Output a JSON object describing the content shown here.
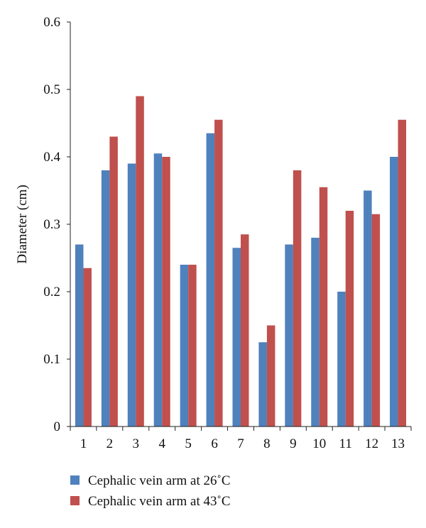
{
  "chart_data": {
    "type": "bar",
    "categories": [
      "1",
      "2",
      "3",
      "4",
      "5",
      "6",
      "7",
      "8",
      "9",
      "10",
      "11",
      "12",
      "13"
    ],
    "series": [
      {
        "name": "Cephalic vein arm at 26˚C",
        "color": "#4f81bd",
        "values": [
          0.27,
          0.38,
          0.39,
          0.405,
          0.24,
          0.435,
          0.265,
          0.125,
          0.27,
          0.28,
          0.2,
          0.35,
          0.4
        ]
      },
      {
        "name": "Cephalic vein arm at 43˚C",
        "color": "#c0504d",
        "values": [
          0.235,
          0.43,
          0.49,
          0.4,
          0.24,
          0.455,
          0.285,
          0.15,
          0.38,
          0.355,
          0.32,
          0.315,
          0.455
        ]
      }
    ],
    "yticks": [
      "0",
      "0.1",
      "0.2",
      "0.3",
      "0.4",
      "0.5",
      "0.6"
    ],
    "ylim": [
      0,
      0.6
    ],
    "xlabel": "",
    "ylabel": "Diameter (cm)",
    "grid": false,
    "legend_position": "bottom-left"
  }
}
